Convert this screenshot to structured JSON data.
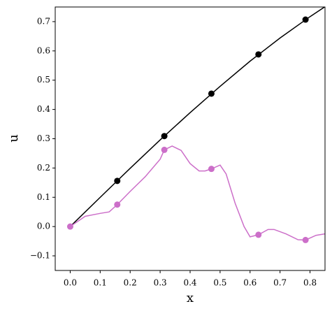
{
  "chart_data": {
    "type": "line",
    "x_label": "x",
    "y_label": "u",
    "xlim": [
      -0.05,
      0.85
    ],
    "ylim": [
      -0.15,
      0.75
    ],
    "xticks": [
      {
        "value": 0,
        "label": "0.0"
      },
      0.1,
      0.2,
      0.3,
      0.4,
      0.5,
      0.6,
      0.7,
      0.8
    ],
    "yticks": [
      {
        "value": -0.1,
        "label": "−0.1"
      },
      {
        "value": 0,
        "label": "0.0"
      },
      0.1,
      0.2,
      0.3,
      0.4,
      0.5,
      0.6,
      0.7
    ],
    "series": [
      {
        "color": "#000000",
        "markers": false,
        "x": [
          0,
          0.1,
          0.2,
          0.3,
          0.4,
          0.5,
          0.6,
          0.7,
          0.8,
          0.85
        ],
        "values": [
          0,
          0.0998,
          0.199,
          0.296,
          0.389,
          0.479,
          0.565,
          0.644,
          0.717,
          0.751
        ]
      },
      {
        "color": "#cc6fc9",
        "markers": false,
        "x": [
          0,
          0.05,
          0.1,
          0.13,
          0.157,
          0.2,
          0.25,
          0.3,
          0.314,
          0.34,
          0.37,
          0.4,
          0.43,
          0.45,
          0.471,
          0.5,
          0.52,
          0.55,
          0.58,
          0.6,
          0.628,
          0.66,
          0.68,
          0.72,
          0.76,
          0.785,
          0.82,
          0.85
        ],
        "values": [
          0,
          0.035,
          0.045,
          0.05,
          0.075,
          0.12,
          0.17,
          0.23,
          0.262,
          0.275,
          0.26,
          0.215,
          0.19,
          0.19,
          0.197,
          0.21,
          0.18,
          0.08,
          0.0,
          -0.035,
          -0.028,
          -0.01,
          -0.01,
          -0.025,
          -0.045,
          -0.046,
          -0.03,
          -0.025
        ]
      },
      {
        "color": "#000000",
        "markers": true,
        "line": false,
        "x": [
          0.157,
          0.314,
          0.471,
          0.628,
          0.785
        ],
        "values": [
          0.156,
          0.309,
          0.454,
          0.588,
          0.707
        ]
      },
      {
        "color": "#cc6fc9",
        "markers": true,
        "line": false,
        "x": [
          0,
          0.157,
          0.314,
          0.471,
          0.628,
          0.785
        ],
        "values": [
          0,
          0.075,
          0.262,
          0.197,
          -0.028,
          -0.046
        ]
      }
    ]
  }
}
